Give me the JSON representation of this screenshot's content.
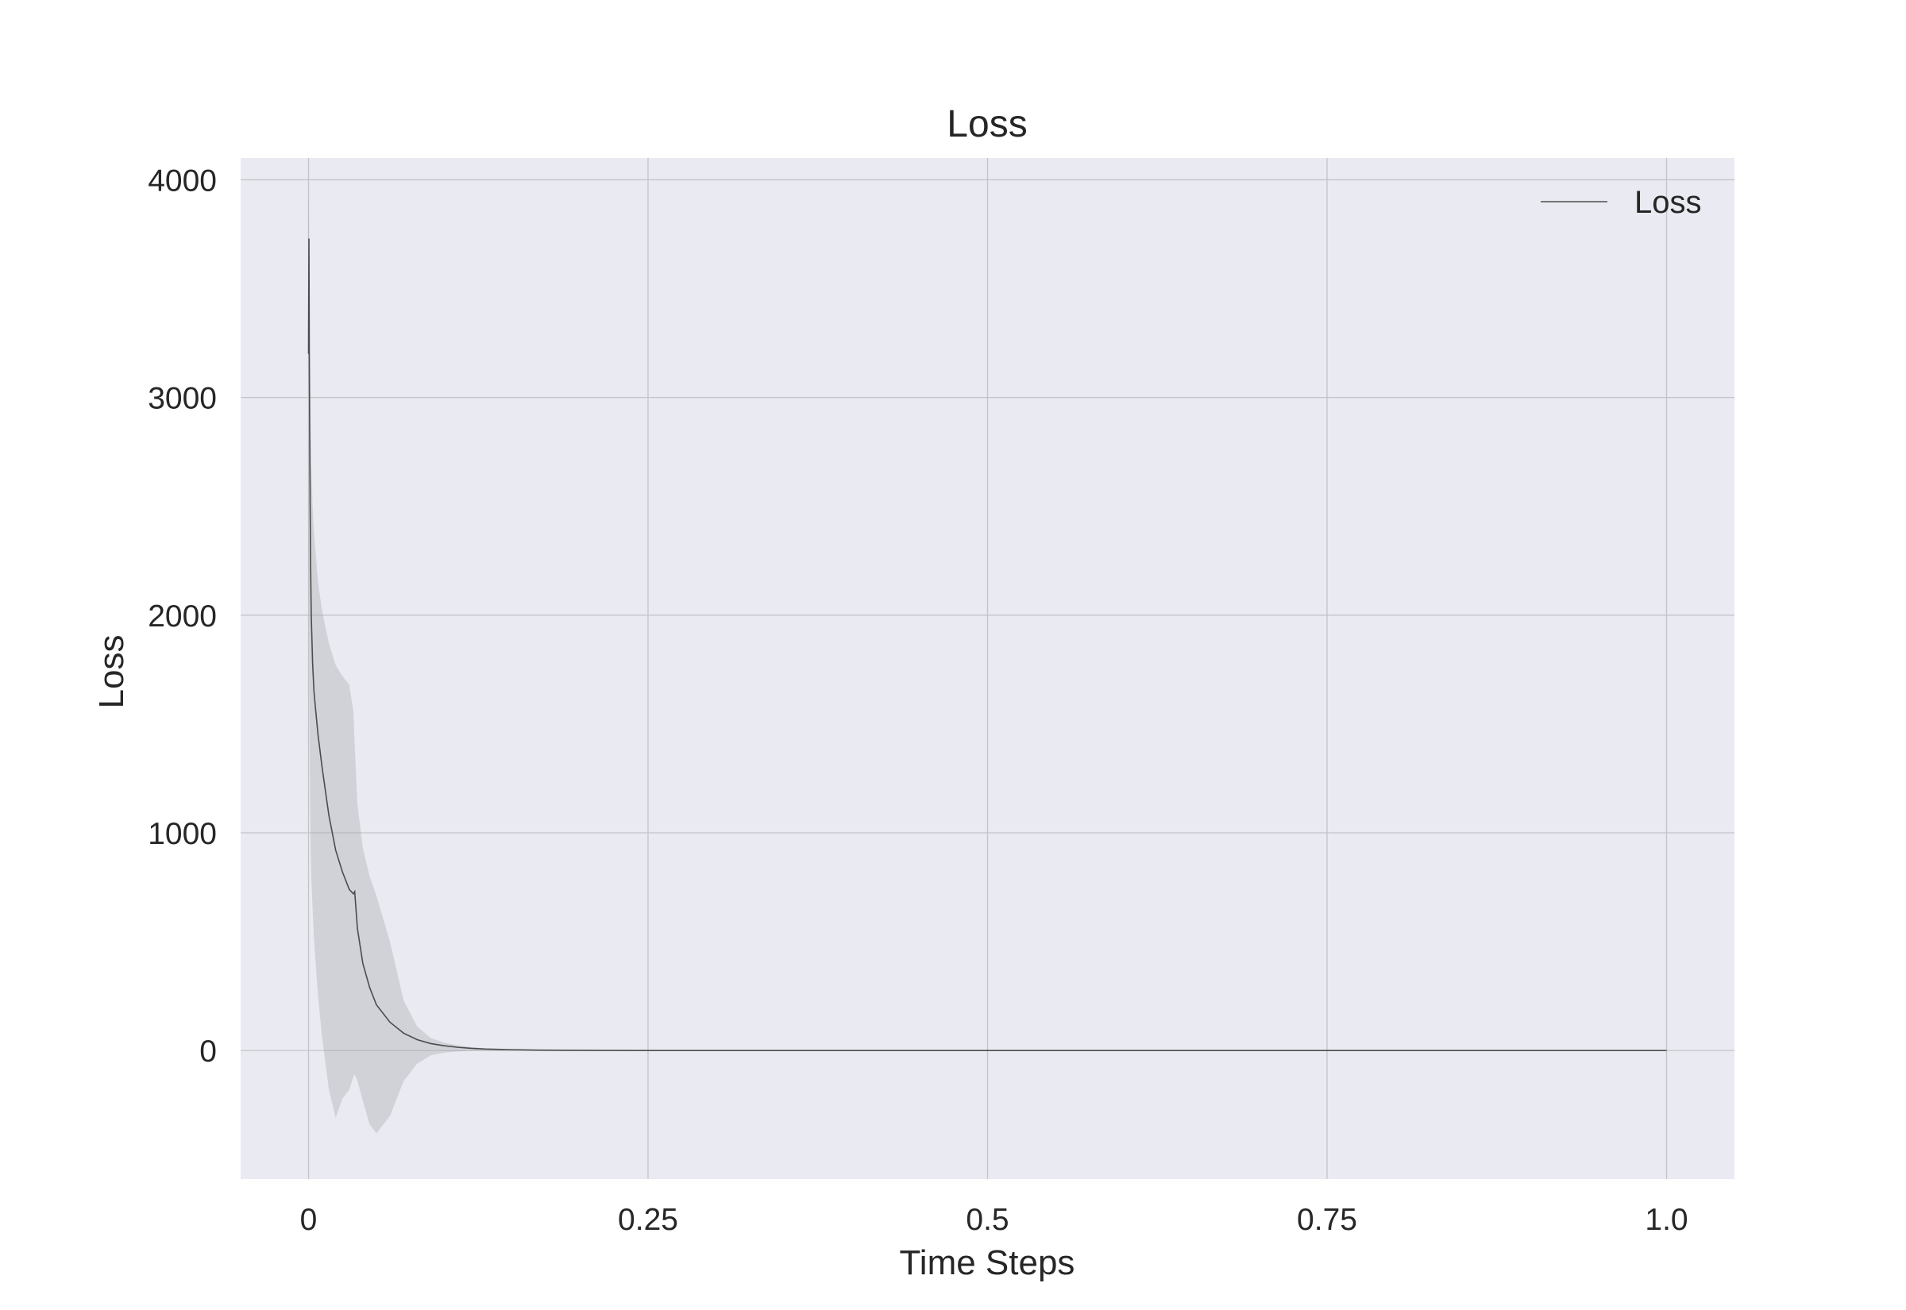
{
  "chart_data": {
    "type": "line",
    "title": "Loss",
    "xlabel": "Time Steps",
    "ylabel": "Loss",
    "xlim": [
      -0.05,
      1.05
    ],
    "ylim": [
      -590,
      4100
    ],
    "x_ticks": [
      0,
      0.25,
      0.5,
      0.75,
      1.0
    ],
    "x_tick_labels": [
      "0",
      "0.25",
      "0.5",
      "0.75",
      "1.0"
    ],
    "y_ticks": [
      0,
      1000,
      2000,
      3000,
      4000
    ],
    "y_tick_labels": [
      "0",
      "1000",
      "2000",
      "3000",
      "4000"
    ],
    "grid": true,
    "legend": {
      "position": "top-right",
      "entries": [
        {
          "name": "Loss",
          "color": "#4c4c4c"
        }
      ]
    },
    "colors": {
      "plot_background": "#eaeaf2",
      "grid": "#c4c4c8",
      "line": "#4c4c4c",
      "band": "#a9a9ad"
    },
    "series": [
      {
        "name": "Loss",
        "x": [
          0,
          0.0003,
          0.0006,
          0.0009,
          0.0012,
          0.0015,
          0.002,
          0.003,
          0.004,
          0.005,
          0.007,
          0.01,
          0.015,
          0.02,
          0.025,
          0.03,
          0.033,
          0.034,
          0.036,
          0.04,
          0.045,
          0.05,
          0.06,
          0.07,
          0.08,
          0.09,
          0.1,
          0.11,
          0.12,
          0.13,
          0.15,
          0.17,
          0.2,
          0.25,
          0.3,
          0.4,
          0.5,
          0.6,
          0.7,
          0.8,
          0.9,
          1.0
        ],
        "values": [
          3200,
          3730,
          3150,
          2800,
          2500,
          2250,
          2000,
          1780,
          1650,
          1580,
          1450,
          1300,
          1080,
          920,
          820,
          740,
          720,
          730,
          560,
          400,
          290,
          210,
          130,
          80,
          50,
          32,
          22,
          15,
          10,
          7,
          4,
          2,
          1,
          0,
          0,
          0,
          0,
          0,
          0,
          0,
          0,
          0
        ],
        "band_upper": [
          3900,
          3900,
          3400,
          3100,
          2950,
          2850,
          2700,
          2500,
          2380,
          2300,
          2150,
          2020,
          1870,
          1770,
          1720,
          1680,
          1560,
          1400,
          1130,
          930,
          800,
          710,
          500,
          230,
          110,
          58,
          36,
          24,
          16,
          11,
          6,
          3,
          1,
          0,
          0,
          0,
          0,
          0,
          0,
          0,
          0,
          0
        ],
        "band_lower": [
          2400,
          2000,
          1600,
          1300,
          1100,
          950,
          800,
          650,
          520,
          420,
          250,
          60,
          -180,
          -310,
          -220,
          -180,
          -120,
          -110,
          -140,
          -230,
          -340,
          -380,
          -300,
          -140,
          -60,
          -22,
          -9,
          -4,
          -2,
          -1,
          0,
          0,
          0,
          0,
          0,
          0,
          0,
          0,
          0,
          0,
          0,
          0
        ]
      }
    ]
  }
}
